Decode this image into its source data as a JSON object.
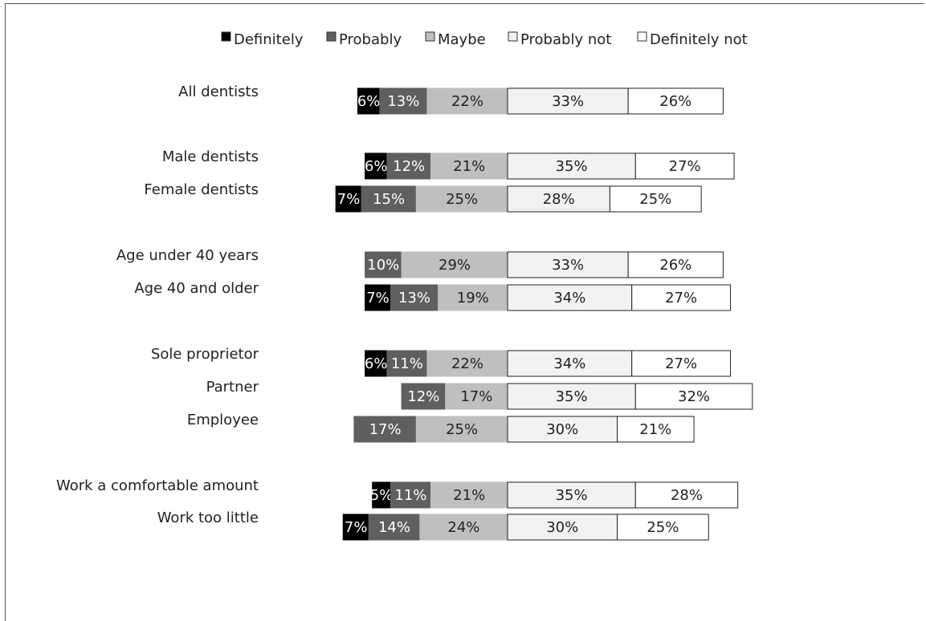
{
  "chart_data": {
    "type": "bar",
    "subtype": "diverging-stacked-horizontal",
    "legend_position": "top",
    "grid": false,
    "series": [
      {
        "name": "Definitely",
        "color": "#000000"
      },
      {
        "name": "Probably",
        "color": "#5f5f5f"
      },
      {
        "name": "Maybe",
        "color": "#bfbfbf"
      },
      {
        "name": "Probably not",
        "color": "#f2f2f2"
      },
      {
        "name": "Definitely not",
        "color": "#ffffff"
      }
    ],
    "categories": [
      {
        "label": "All dentists",
        "group": 0,
        "values": [
          6,
          13,
          22,
          33,
          26
        ],
        "labels": [
          "6%",
          "13%",
          "22%",
          "33%",
          "26%"
        ]
      },
      {
        "label": "Male dentists",
        "group": 1,
        "values": [
          6,
          12,
          21,
          35,
          27
        ],
        "labels": [
          "6%",
          "12%",
          "21%",
          "35%",
          "27%"
        ]
      },
      {
        "label": "Female dentists",
        "group": 1,
        "values": [
          7,
          15,
          25,
          28,
          25
        ],
        "labels": [
          "7%",
          "15%",
          "25%",
          "28%",
          "25%"
        ]
      },
      {
        "label": "Age under 40 years",
        "group": 2,
        "values": [
          0,
          10,
          29,
          33,
          26
        ],
        "labels": [
          "",
          "10%",
          "29%",
          "33%",
          "26%"
        ]
      },
      {
        "label": "Age 40 and older",
        "group": 2,
        "values": [
          7,
          13,
          19,
          34,
          27
        ],
        "labels": [
          "7%",
          "13%",
          "19%",
          "34%",
          "27%"
        ]
      },
      {
        "label": "Sole proprietor",
        "group": 3,
        "values": [
          6,
          11,
          22,
          34,
          27
        ],
        "labels": [
          "6%",
          "11%",
          "22%",
          "34%",
          "27%"
        ]
      },
      {
        "label": "Partner",
        "group": 3,
        "values": [
          0,
          12,
          17,
          35,
          32
        ],
        "labels": [
          "",
          "12%",
          "17%",
          "35%",
          "32%"
        ]
      },
      {
        "label": "Employee",
        "group": 3,
        "values": [
          0,
          17,
          25,
          30,
          21
        ],
        "labels": [
          "",
          "17%",
          "25%",
          "30%",
          "21%"
        ]
      },
      {
        "label": "Work a comfortable amount",
        "group": 4,
        "values": [
          5,
          11,
          21,
          35,
          28
        ],
        "labels": [
          "5%",
          "11%",
          "21%",
          "35%",
          "28%"
        ]
      },
      {
        "label": "Work too little",
        "group": 4,
        "values": [
          7,
          14,
          24,
          30,
          25
        ],
        "labels": [
          "7%",
          "14%",
          "24%",
          "30%",
          "25%"
        ]
      }
    ]
  }
}
